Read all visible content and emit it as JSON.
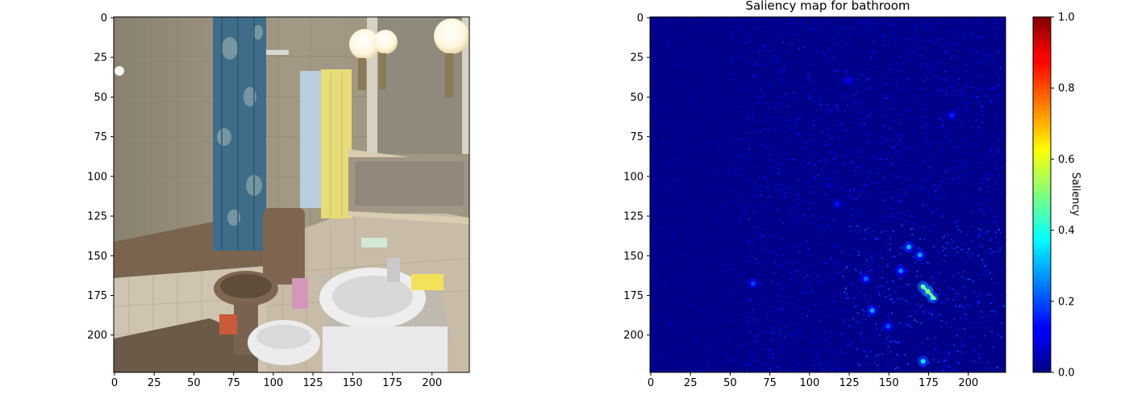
{
  "colors": {
    "axis": "#000000",
    "background": "#ffffff",
    "saliency_background": "#000088",
    "colormap": "jet"
  },
  "photo_elements": {
    "tile_wall": "#9a917e",
    "lower_tile": "#c8bca8",
    "curtain": "#3e6d8a",
    "bathtub": "#7a6450",
    "toilet": "#7e6650",
    "sink": "#eeeeee",
    "towel_yellow": "#e7dc77",
    "towel_blue": "#b8cede",
    "floor": "#6b5a48",
    "cabinet": "#d9ccb1",
    "lamp": "#fff8e8"
  },
  "chart_data": [
    {
      "type": "image",
      "title": "",
      "xlabel": "",
      "ylabel": "",
      "xlim": [
        0,
        224
      ],
      "ylim": [
        224,
        0
      ],
      "x_ticks": [
        0,
        25,
        50,
        75,
        100,
        125,
        150,
        175,
        200
      ],
      "y_ticks": [
        0,
        25,
        50,
        75,
        100,
        125,
        150,
        175,
        200
      ],
      "x_tick_labels": [
        "0",
        "25",
        "50",
        "75",
        "100",
        "125",
        "150",
        "175",
        "200"
      ],
      "y_tick_labels": [
        "0",
        "25",
        "50",
        "75",
        "100",
        "125",
        "150",
        "175",
        "200"
      ]
    },
    {
      "type": "heatmap",
      "title": "Saliency map for bathroom",
      "xlabel": "",
      "ylabel": "",
      "xlim": [
        0,
        224
      ],
      "ylim": [
        224,
        0
      ],
      "x_ticks": [
        0,
        25,
        50,
        75,
        100,
        125,
        150,
        175,
        200
      ],
      "y_ticks": [
        0,
        25,
        50,
        75,
        100,
        125,
        150,
        175,
        200
      ],
      "x_tick_labels": [
        "0",
        "25",
        "50",
        "75",
        "100",
        "125",
        "150",
        "175",
        "200"
      ],
      "y_tick_labels": [
        "0",
        "25",
        "50",
        "75",
        "100",
        "125",
        "150",
        "175",
        "200"
      ],
      "colorbar": {
        "label": "Saliency",
        "range": [
          0,
          1
        ],
        "ticks": [
          0,
          0.2,
          0.4,
          0.6,
          0.8,
          1.0
        ],
        "tick_labels": [
          "0.0",
          "0.2",
          "0.4",
          "0.6",
          "0.8",
          "1.0"
        ]
      },
      "hotspots": [
        {
          "x": 175,
          "y": 173,
          "value": 0.55
        },
        {
          "x": 172,
          "y": 170,
          "value": 0.45
        },
        {
          "x": 178,
          "y": 177,
          "value": 0.4
        },
        {
          "x": 163,
          "y": 145,
          "value": 0.3
        },
        {
          "x": 170,
          "y": 150,
          "value": 0.28
        },
        {
          "x": 158,
          "y": 160,
          "value": 0.25
        },
        {
          "x": 140,
          "y": 185,
          "value": 0.28
        },
        {
          "x": 136,
          "y": 165,
          "value": 0.22
        },
        {
          "x": 150,
          "y": 195,
          "value": 0.2
        },
        {
          "x": 172,
          "y": 217,
          "value": 0.35
        },
        {
          "x": 65,
          "y": 168,
          "value": 0.18
        },
        {
          "x": 190,
          "y": 62,
          "value": 0.15
        },
        {
          "x": 125,
          "y": 40,
          "value": 0.12
        },
        {
          "x": 118,
          "y": 118,
          "value": 0.14
        }
      ]
    }
  ]
}
